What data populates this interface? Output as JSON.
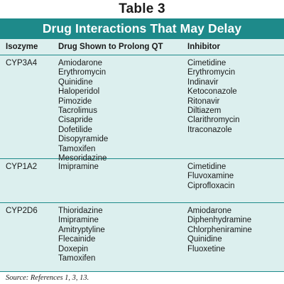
{
  "table": {
    "number": "Table 3",
    "title": "Drug Interactions That May Delay Repolarization",
    "headers": {
      "isozyme": "Isozyme",
      "drug": "Drug Shown to Prolong QT",
      "inhibitor": "Inhibitor"
    },
    "groups": [
      {
        "isozyme": "CYP3A4",
        "drugs": [
          "Amiodarone",
          "Erythromycin",
          "Quinidine",
          "Haloperidol",
          "Pimozide",
          "Tacrolimus",
          "Cisapride",
          "Dofetilide",
          "Disopyramide",
          "Tamoxifen",
          "Mesoridazine"
        ],
        "inhibitors": [
          "Cimetidine",
          "Erythromycin",
          "Indinavir",
          "Ketoconazole",
          "Ritonavir",
          "Diltiazem",
          "Clarithromycin",
          "Itraconazole"
        ]
      },
      {
        "isozyme": "CYP1A2",
        "drugs": [
          "Imipramine"
        ],
        "inhibitors": [
          "Cimetidine",
          "Fluvoxamine",
          "Ciprofloxacin"
        ]
      },
      {
        "isozyme": "CYP2D6",
        "drugs": [
          "Thioridazine",
          "Imipramine",
          "Amitryptyline",
          "Flecainide",
          "Doxepin",
          "Tamoxifen"
        ],
        "inhibitors": [
          "Amiodarone",
          "Diphenhydramine",
          "Chlorpheniramine",
          "Quinidine",
          "Fluoxetine"
        ]
      }
    ],
    "source": "Source: References 1, 3, 13."
  },
  "colors": {
    "accent": "#1e8a8a",
    "body_background": "#dcefee"
  }
}
